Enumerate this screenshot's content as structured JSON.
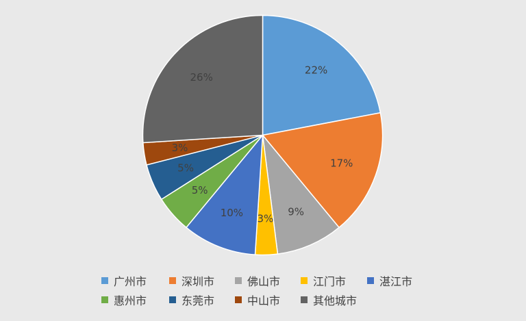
{
  "chart_data": {
    "type": "pie",
    "title": "",
    "start_angle_deg": 0,
    "direction": "clockwise",
    "label_format": "percent",
    "legend_position": "bottom",
    "slices": [
      {
        "label": "广州市",
        "value": 22,
        "display": "22%",
        "color": "#5b9bd5"
      },
      {
        "label": "深圳市",
        "value": 17,
        "display": "17%",
        "color": "#ed7d31"
      },
      {
        "label": "佛山市",
        "value": 9,
        "display": "9%",
        "color": "#a5a5a5"
      },
      {
        "label": "江门市",
        "value": 3,
        "display": "3%",
        "color": "#ffc000"
      },
      {
        "label": "湛江市",
        "value": 10,
        "display": "10%",
        "color": "#4472c4"
      },
      {
        "label": "惠州市",
        "value": 5,
        "display": "5%",
        "color": "#70ad47"
      },
      {
        "label": "东莞市",
        "value": 5,
        "display": "5%",
        "color": "#255e91"
      },
      {
        "label": "中山市",
        "value": 3,
        "display": "3%",
        "color": "#9e480e"
      },
      {
        "label": "其他城市",
        "value": 26,
        "display": "26%",
        "color": "#636363"
      }
    ]
  }
}
